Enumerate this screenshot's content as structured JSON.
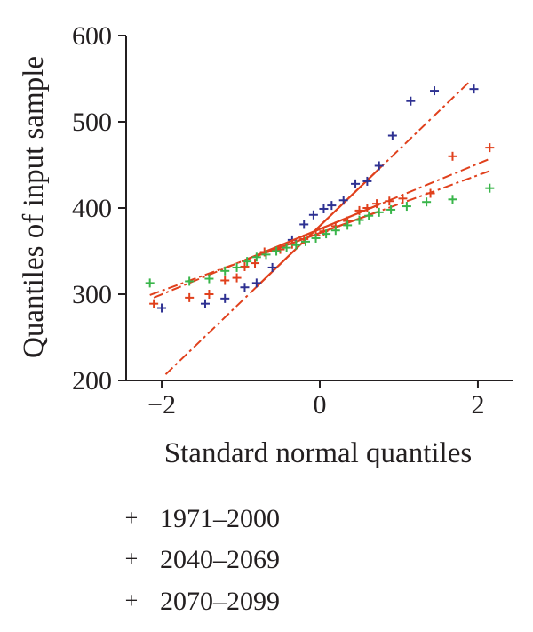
{
  "chart_data": {
    "type": "scatter",
    "title": "",
    "xlabel": "Standard normal quantiles",
    "ylabel": "Quantiles of input sample",
    "xlim": [
      -2.45,
      2.45
    ],
    "ylim": [
      200,
      600
    ],
    "xticks": [
      -2,
      0,
      2
    ],
    "xtick_labels": [
      "−2",
      "0",
      "2"
    ],
    "yticks": [
      200,
      300,
      400,
      500,
      600
    ],
    "ytick_labels": [
      "200",
      "300",
      "400",
      "500",
      "600"
    ],
    "grid": false,
    "legend_position": "bottom",
    "series": [
      {
        "name": "1971–2000",
        "color": "#2e3192",
        "marker": "+",
        "points": [
          [
            -2.0,
            284
          ],
          [
            -1.45,
            289
          ],
          [
            -1.2,
            295
          ],
          [
            -0.95,
            308
          ],
          [
            -0.8,
            313
          ],
          [
            -0.6,
            331
          ],
          [
            -0.35,
            363
          ],
          [
            -0.2,
            381
          ],
          [
            -0.08,
            392
          ],
          [
            0.05,
            399
          ],
          [
            0.15,
            403
          ],
          [
            0.3,
            409
          ],
          [
            0.45,
            428
          ],
          [
            0.6,
            431
          ],
          [
            0.75,
            449
          ],
          [
            0.92,
            484
          ],
          [
            1.15,
            524
          ],
          [
            1.45,
            536
          ],
          [
            1.95,
            538
          ]
        ],
        "fit_line": [
          [
            -1.95,
            207
          ],
          [
            1.9,
            547
          ]
        ]
      },
      {
        "name": "2040–2069",
        "color": "#e0401c",
        "marker": "+",
        "points": [
          [
            -2.1,
            289
          ],
          [
            -1.65,
            296
          ],
          [
            -1.4,
            300
          ],
          [
            -1.2,
            316
          ],
          [
            -1.05,
            319
          ],
          [
            -0.95,
            332
          ],
          [
            -0.82,
            336
          ],
          [
            -0.7,
            349
          ],
          [
            -0.5,
            352
          ],
          [
            -0.35,
            358
          ],
          [
            -0.2,
            364
          ],
          [
            -0.05,
            368
          ],
          [
            0.05,
            373
          ],
          [
            0.2,
            379
          ],
          [
            0.35,
            385
          ],
          [
            0.5,
            397
          ],
          [
            0.6,
            400
          ],
          [
            0.72,
            405
          ],
          [
            0.88,
            408
          ],
          [
            1.05,
            411
          ],
          [
            1.4,
            417
          ],
          [
            1.68,
            460
          ],
          [
            2.15,
            470
          ]
        ],
        "fit_line": [
          [
            -2.1,
            296
          ],
          [
            2.15,
            457
          ]
        ]
      },
      {
        "name": "2070–2099",
        "color": "#39b54a",
        "marker": "+",
        "points": [
          [
            -2.15,
            313
          ],
          [
            -1.65,
            315
          ],
          [
            -1.4,
            318
          ],
          [
            -1.2,
            327
          ],
          [
            -1.05,
            331
          ],
          [
            -0.92,
            338
          ],
          [
            -0.8,
            343
          ],
          [
            -0.68,
            346
          ],
          [
            -0.55,
            350
          ],
          [
            -0.42,
            354
          ],
          [
            -0.3,
            357
          ],
          [
            -0.18,
            361
          ],
          [
            -0.05,
            365
          ],
          [
            0.08,
            370
          ],
          [
            0.2,
            374
          ],
          [
            0.35,
            380
          ],
          [
            0.5,
            386
          ],
          [
            0.62,
            391
          ],
          [
            0.75,
            395
          ],
          [
            0.9,
            398
          ],
          [
            1.1,
            402
          ],
          [
            1.35,
            407
          ],
          [
            1.68,
            410
          ],
          [
            2.15,
            423
          ]
        ],
        "fit_line": [
          [
            -2.15,
            299
          ],
          [
            2.15,
            443
          ]
        ]
      }
    ]
  }
}
